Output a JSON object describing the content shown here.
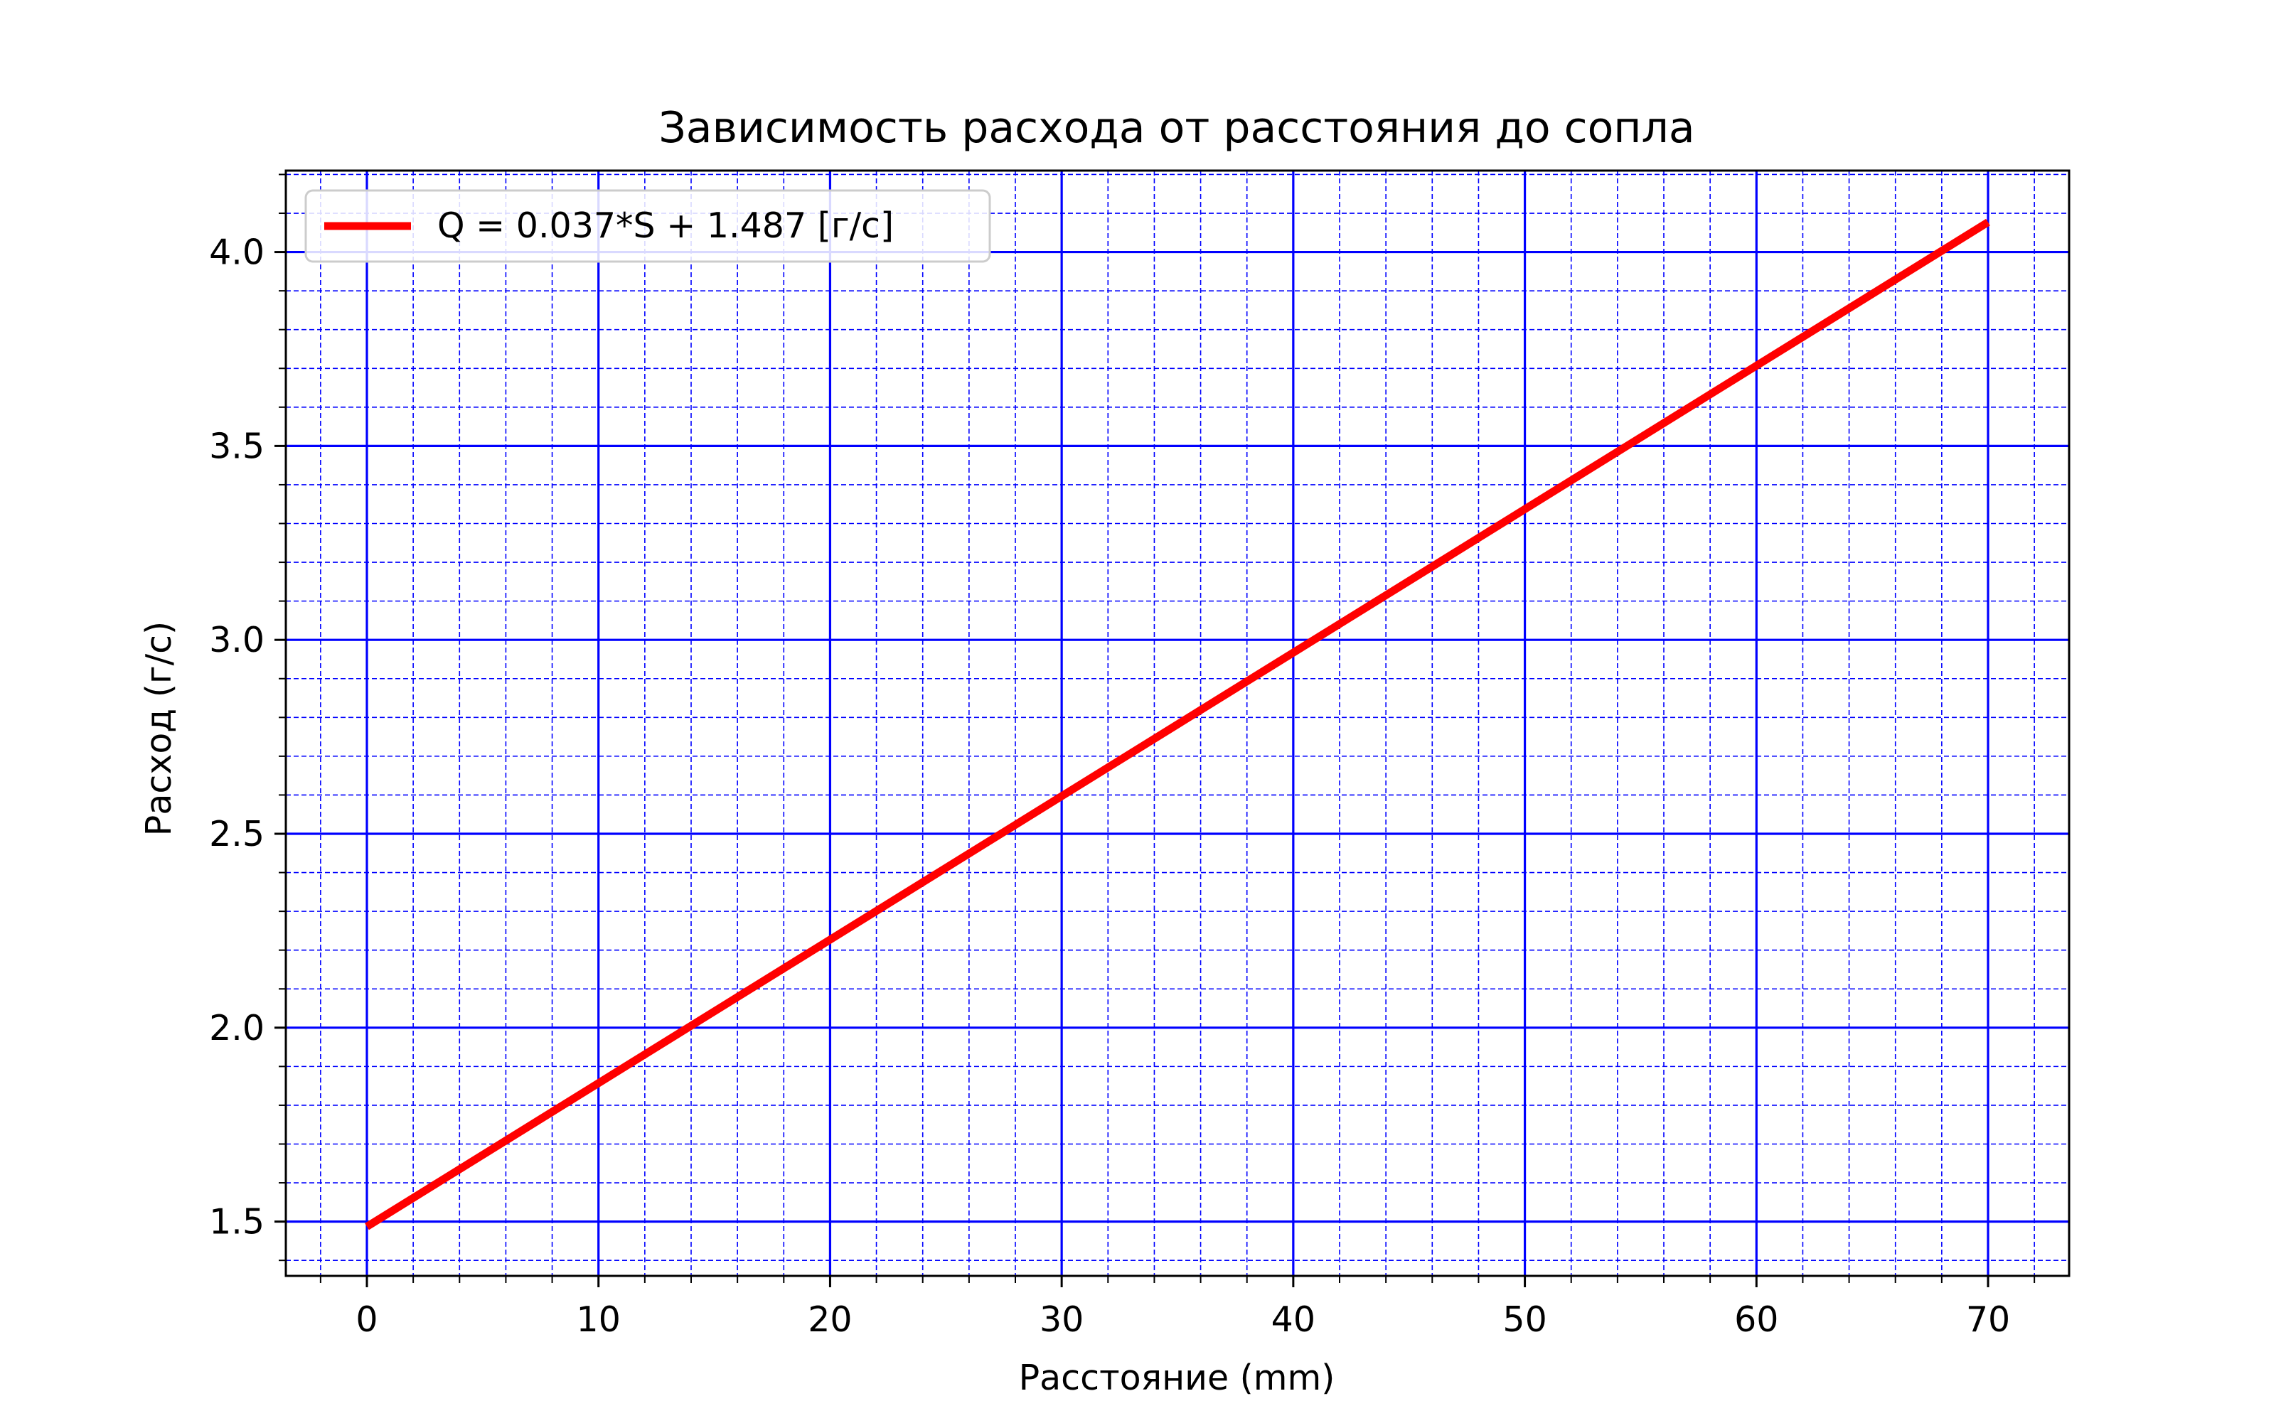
{
  "chart_data": {
    "type": "line",
    "title": "Зависимость расхода от расстояния до сопла",
    "xlabel": "Расстояние (mm)",
    "ylabel": "Расход (г/с)",
    "xlim": [
      -3.5,
      73.5
    ],
    "ylim": [
      1.36,
      4.21
    ],
    "x_major_ticks": [
      0,
      10,
      20,
      30,
      40,
      50,
      60,
      70
    ],
    "x_tick_labels": [
      "0",
      "10",
      "20",
      "30",
      "40",
      "50",
      "60",
      "70"
    ],
    "x_minor_step": 2,
    "y_major_ticks": [
      1.5,
      2.0,
      2.5,
      3.0,
      3.5,
      4.0
    ],
    "y_tick_labels": [
      "1.5",
      "2.0",
      "2.5",
      "3.0",
      "3.5",
      "4.0"
    ],
    "y_minor_step": 0.1,
    "grid": {
      "major": true,
      "minor": true,
      "color": "#0000ff"
    },
    "legend_position": "top-left",
    "series": [
      {
        "name": "Q = 0.037*S + 1.487 [г/с]",
        "color": "#ff0000",
        "x": [
          0,
          70
        ],
        "y": [
          1.487,
          4.077
        ]
      }
    ]
  }
}
